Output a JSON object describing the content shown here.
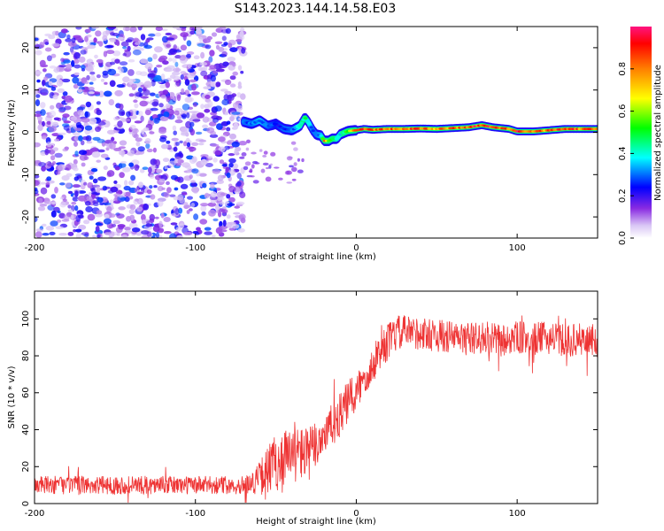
{
  "title": "S143.2023.144.14.58.E03",
  "colors": {
    "snr_line": "#ee3333",
    "background": "#ffffff",
    "axis": "#000000",
    "noise_purple": "#8a2be2"
  },
  "chart_data": [
    {
      "type": "heatmap",
      "xlabel": "Height of straight line (km)",
      "ylabel": "Frequency (Hz)",
      "xlim": [
        -200,
        150
      ],
      "ylim": [
        -25,
        25
      ],
      "x_ticks": [
        -200,
        -100,
        0,
        100
      ],
      "y_ticks": [
        -20,
        -10,
        0,
        10,
        20
      ],
      "grid": false,
      "colorbar": {
        "label": "Normalized spectral amplitude",
        "range": [
          0,
          1
        ],
        "ticks": [
          0.0,
          0.2,
          0.4,
          0.6,
          0.8
        ],
        "tick_labels": [
          "0.0",
          "0.2",
          "0.4",
          "0.6",
          "0.8"
        ],
        "colormap": "rainbow"
      },
      "noise_region": {
        "x": [
          -200,
          -70
        ],
        "y": [
          -25,
          25
        ],
        "amplitude": [
          0.05,
          0.3
        ]
      },
      "signal_trace": {
        "x": [
          -70,
          -65,
          -60,
          -55,
          -50,
          -45,
          -40,
          -35,
          -32,
          -30,
          -27,
          -25,
          -22,
          -20,
          -17,
          -15,
          -12,
          -10,
          -7,
          -5,
          0,
          5,
          10,
          20,
          30,
          40,
          50,
          60,
          70,
          78,
          85,
          95,
          100,
          110,
          120,
          130,
          140,
          150
        ],
        "y": [
          2.5,
          2.0,
          2.8,
          1.5,
          2.0,
          0.8,
          0.5,
          1.5,
          3.5,
          2.5,
          0.5,
          -0.5,
          -0.8,
          -2.0,
          -2.0,
          -1.5,
          -1.5,
          -0.5,
          0.0,
          0.3,
          0.5,
          0.8,
          0.6,
          0.8,
          0.8,
          0.9,
          0.8,
          1.0,
          1.2,
          1.7,
          1.2,
          0.8,
          0.2,
          0.2,
          0.5,
          0.8,
          0.8,
          0.8
        ],
        "amplitude": [
          0.3,
          0.3,
          0.35,
          0.3,
          0.25,
          0.3,
          0.3,
          0.4,
          0.5,
          0.4,
          0.3,
          0.3,
          0.35,
          0.9,
          0.6,
          0.5,
          0.4,
          0.4,
          0.5,
          0.6,
          0.9,
          0.95,
          0.9,
          0.85,
          0.9,
          0.85,
          0.8,
          0.85,
          0.9,
          0.95,
          0.95,
          0.85,
          0.95,
          0.8,
          0.85,
          0.9,
          0.85,
          0.85
        ]
      }
    },
    {
      "type": "line",
      "xlabel": "Height of straight line (km)",
      "ylabel": "SNR (10 * v/v)",
      "xlim": [
        -200,
        150
      ],
      "ylim": [
        0,
        115
      ],
      "x_ticks": [
        -200,
        -100,
        0,
        100
      ],
      "y_ticks": [
        0,
        20,
        40,
        60,
        80,
        100
      ],
      "grid": false,
      "series": [
        {
          "name": "SNR",
          "x": [
            -200,
            -190,
            -180,
            -170,
            -160,
            -150,
            -140,
            -130,
            -120,
            -110,
            -100,
            -90,
            -80,
            -70,
            -65,
            -60,
            -55,
            -50,
            -45,
            -40,
            -35,
            -30,
            -25,
            -20,
            -15,
            -10,
            -5,
            0,
            5,
            10,
            15,
            20,
            25,
            30,
            40,
            50,
            60,
            70,
            80,
            90,
            100,
            110,
            120,
            130,
            140,
            150
          ],
          "mean": [
            10,
            10,
            10,
            10,
            10,
            10,
            10,
            10,
            10,
            10,
            10,
            10,
            10,
            10,
            11,
            14,
            18,
            22,
            26,
            25,
            28,
            26,
            32,
            38,
            42,
            48,
            55,
            60,
            68,
            75,
            82,
            88,
            92,
            93,
            92,
            91,
            90,
            89,
            90,
            88,
            90,
            89,
            90,
            88,
            89,
            88
          ],
          "spread": [
            5,
            5,
            5,
            5,
            5,
            5,
            5,
            5,
            5,
            5,
            5,
            5,
            5,
            5,
            6,
            9,
            14,
            16,
            16,
            15,
            15,
            15,
            14,
            12,
            12,
            12,
            12,
            12,
            10,
            10,
            10,
            10,
            10,
            9,
            9,
            9,
            9,
            9,
            9,
            9,
            9,
            9,
            9,
            9,
            9,
            9
          ]
        }
      ]
    }
  ]
}
